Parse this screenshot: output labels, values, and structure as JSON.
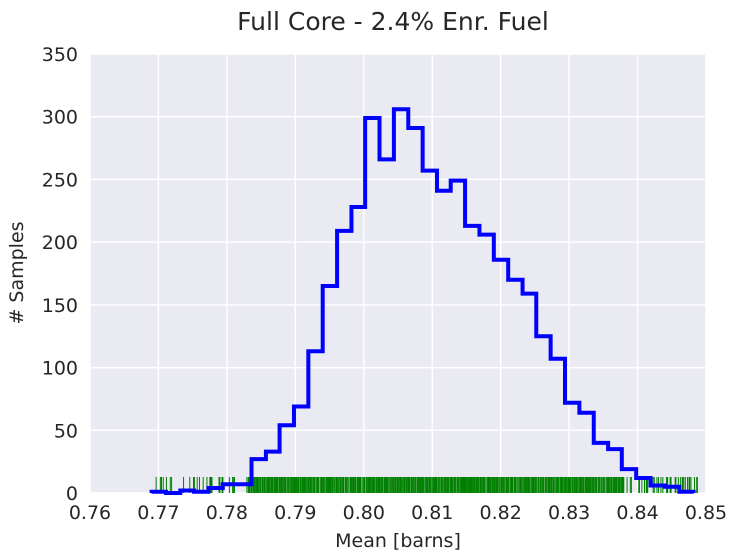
{
  "chart_data": {
    "type": "histogram",
    "title": "Full Core - 2.4% Enr. Fuel",
    "xlabel": "Mean [barns]",
    "ylabel": "# Samples",
    "xlim": [
      0.76,
      0.85
    ],
    "ylim": [
      0,
      350
    ],
    "x_ticks": [
      0.76,
      0.77,
      0.78,
      0.79,
      0.8,
      0.81,
      0.82,
      0.83,
      0.84,
      0.85
    ],
    "y_ticks": [
      0,
      50,
      100,
      150,
      200,
      250,
      300,
      350
    ],
    "grid": true,
    "background_color": "#EAEAF2",
    "grid_color": "#FFFFFF",
    "text_color": "#262626",
    "series": [
      {
        "type": "step-histogram",
        "color": "#0000FF",
        "bin_edges": [
          0.769,
          0.7711,
          0.7732,
          0.7752,
          0.7773,
          0.7794,
          0.7815,
          0.7836,
          0.7857,
          0.7877,
          0.7898,
          0.7919,
          0.794,
          0.7961,
          0.7982,
          0.8002,
          0.8023,
          0.8044,
          0.8065,
          0.8086,
          0.8107,
          0.8127,
          0.8148,
          0.8169,
          0.819,
          0.8211,
          0.8232,
          0.8252,
          0.8273,
          0.8294,
          0.8315,
          0.8336,
          0.8357,
          0.8377,
          0.8398,
          0.8419,
          0.844,
          0.8461,
          0.8482
        ],
        "counts": [
          1,
          0,
          2,
          1,
          4,
          7,
          7,
          27,
          33,
          54,
          69,
          113,
          165,
          209,
          228,
          299,
          266,
          306,
          291,
          257,
          241,
          249,
          213,
          206,
          186,
          170,
          159,
          125,
          107,
          72,
          64,
          40,
          35,
          19,
          12,
          6,
          5,
          1
        ]
      },
      {
        "type": "rug",
        "color": "#008000",
        "range": [
          0.769,
          0.849
        ],
        "dense_range": [
          0.783,
          0.838
        ],
        "height": 16
      }
    ]
  }
}
